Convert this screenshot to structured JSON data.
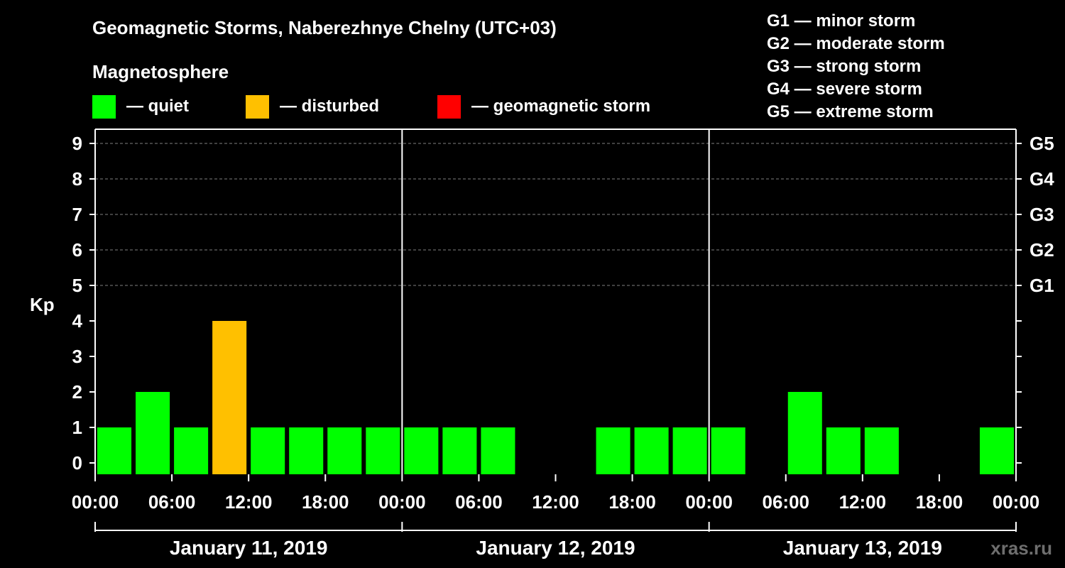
{
  "chart_data": {
    "type": "bar",
    "title": "Geomagnetic Storms, Naberezhnye Chelny (UTC+03)",
    "subtitle": "Magnetosphere",
    "ylabel": "Kp",
    "ylim": [
      0,
      9
    ],
    "yticks": [
      "0",
      "1",
      "2",
      "3",
      "4",
      "5",
      "6",
      "7",
      "8",
      "9"
    ],
    "right_axis_labels": [
      {
        "kp": 5,
        "label": "G1"
      },
      {
        "kp": 6,
        "label": "G2"
      },
      {
        "kp": 7,
        "label": "G3"
      },
      {
        "kp": 8,
        "label": "G4"
      },
      {
        "kp": 9,
        "label": "G5"
      }
    ],
    "xtick_labels": [
      "00:00",
      "06:00",
      "12:00",
      "18:00",
      "00:00",
      "06:00",
      "12:00",
      "18:00",
      "00:00",
      "06:00",
      "12:00",
      "18:00",
      "00:00"
    ],
    "days": [
      "January 11, 2019",
      "January 12, 2019",
      "January 13, 2019"
    ],
    "interval_hours": 3,
    "values": [
      1,
      2,
      1,
      4,
      1,
      1,
      1,
      1,
      1,
      1,
      1,
      0,
      0,
      1,
      1,
      1,
      1,
      0,
      2,
      1,
      1,
      0,
      0,
      1
    ],
    "status_thresholds": {
      "disturbed": 4,
      "storm": 5
    },
    "colors": {
      "quiet": "#00ff00",
      "disturbed": "#ffc000",
      "storm": "#ff0000",
      "background": "#000000",
      "axis": "#ffffff",
      "grid": "#808080",
      "credit": "#6e6e6e"
    },
    "legend": [
      {
        "key": "quiet",
        "label": "— quiet"
      },
      {
        "key": "disturbed",
        "label": "— disturbed"
      },
      {
        "key": "storm",
        "label": "— geomagnetic storm"
      }
    ],
    "storm_scale": [
      "G1 — minor storm",
      "G2 — moderate storm",
      "G3 — strong storm",
      "G4 — severe storm",
      "G5 — extreme storm"
    ],
    "grid": true,
    "credit": "xras.ru"
  }
}
